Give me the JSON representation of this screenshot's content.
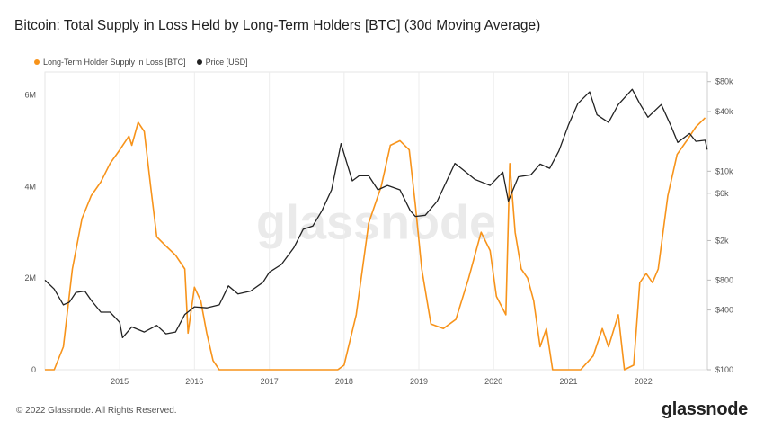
{
  "title": "Bitcoin: Total Supply in Loss Held by Long-Term Holders [BTC] (30d Moving Average)",
  "legend": [
    {
      "label": "Long-Term Holder Supply in Loss [BTC]",
      "color": "#f7931a"
    },
    {
      "label": "Price [USD]",
      "color": "#222222"
    }
  ],
  "watermark": "glassnode",
  "footer": {
    "copyright": "© 2022 Glassnode. All Rights Reserved.",
    "brand": "glassnode"
  },
  "chart_data": {
    "type": "line",
    "x_ticks": [
      "2015",
      "2016",
      "2017",
      "2018",
      "2019",
      "2020",
      "2021",
      "2022"
    ],
    "y_left_ticks": [
      "0",
      "2M",
      "4M",
      "6M"
    ],
    "y_left_range": [
      0,
      6500000
    ],
    "y_right_ticks": [
      "$100",
      "$400",
      "$800",
      "$2k",
      "$6k",
      "$10k",
      "$40k",
      "$80k"
    ],
    "y_right_range": [
      100,
      100000
    ],
    "y_right_scale": "log",
    "grid": "vertical",
    "legend_position": "top-left",
    "series": [
      {
        "name": "Long-Term Holder Supply in Loss [BTC]",
        "color": "#f7931a",
        "axis": "left",
        "points": [
          [
            "2014-01-01",
            0
          ],
          [
            "2014-02-15",
            0
          ],
          [
            "2014-04-01",
            500000
          ],
          [
            "2014-05-15",
            2200000
          ],
          [
            "2014-07-01",
            3300000
          ],
          [
            "2014-08-15",
            3800000
          ],
          [
            "2014-10-01",
            4100000
          ],
          [
            "2014-11-15",
            4500000
          ],
          [
            "2015-01-01",
            4800000
          ],
          [
            "2015-02-15",
            5100000
          ],
          [
            "2015-03-01",
            4900000
          ],
          [
            "2015-04-01",
            5400000
          ],
          [
            "2015-05-01",
            5200000
          ],
          [
            "2015-06-01",
            4000000
          ],
          [
            "2015-07-01",
            2900000
          ],
          [
            "2015-08-15",
            2700000
          ],
          [
            "2015-10-01",
            2500000
          ],
          [
            "2015-11-15",
            2200000
          ],
          [
            "2015-12-01",
            800000
          ],
          [
            "2016-01-01",
            1800000
          ],
          [
            "2016-02-01",
            1500000
          ],
          [
            "2016-03-01",
            800000
          ],
          [
            "2016-04-01",
            200000
          ],
          [
            "2016-05-01",
            0
          ],
          [
            "2017-01-01",
            0
          ],
          [
            "2017-06-01",
            0
          ],
          [
            "2017-12-01",
            0
          ],
          [
            "2018-01-01",
            100000
          ],
          [
            "2018-03-01",
            1200000
          ],
          [
            "2018-05-01",
            3200000
          ],
          [
            "2018-07-01",
            4000000
          ],
          [
            "2018-08-15",
            4900000
          ],
          [
            "2018-10-01",
            5000000
          ],
          [
            "2018-11-15",
            4800000
          ],
          [
            "2018-12-15",
            3600000
          ],
          [
            "2019-01-15",
            2200000
          ],
          [
            "2019-03-01",
            1000000
          ],
          [
            "2019-05-01",
            900000
          ],
          [
            "2019-07-01",
            1100000
          ],
          [
            "2019-09-01",
            2000000
          ],
          [
            "2019-11-01",
            3000000
          ],
          [
            "2019-12-15",
            2600000
          ],
          [
            "2020-01-15",
            1600000
          ],
          [
            "2020-03-01",
            1200000
          ],
          [
            "2020-03-20",
            4500000
          ],
          [
            "2020-04-15",
            3000000
          ],
          [
            "2020-05-15",
            2200000
          ],
          [
            "2020-06-15",
            2000000
          ],
          [
            "2020-07-15",
            1500000
          ],
          [
            "2020-08-15",
            500000
          ],
          [
            "2020-09-15",
            900000
          ],
          [
            "2020-10-15",
            0
          ],
          [
            "2020-12-01",
            0
          ],
          [
            "2021-03-01",
            0
          ],
          [
            "2021-05-01",
            300000
          ],
          [
            "2021-06-15",
            900000
          ],
          [
            "2021-07-15",
            500000
          ],
          [
            "2021-09-01",
            1200000
          ],
          [
            "2021-10-01",
            0
          ],
          [
            "2021-11-15",
            100000
          ],
          [
            "2021-12-15",
            1900000
          ],
          [
            "2022-01-15",
            2100000
          ],
          [
            "2022-02-15",
            1900000
          ],
          [
            "2022-03-15",
            2200000
          ],
          [
            "2022-05-01",
            3800000
          ],
          [
            "2022-06-15",
            4700000
          ],
          [
            "2022-08-01",
            5000000
          ],
          [
            "2022-09-15",
            5300000
          ],
          [
            "2022-10-30",
            5500000
          ]
        ]
      },
      {
        "name": "Price [USD]",
        "color": "#222222",
        "axis": "right",
        "points": [
          [
            "2014-01-01",
            800
          ],
          [
            "2014-02-15",
            650
          ],
          [
            "2014-04-01",
            450
          ],
          [
            "2014-05-01",
            480
          ],
          [
            "2014-06-01",
            600
          ],
          [
            "2014-07-15",
            620
          ],
          [
            "2014-08-15",
            500
          ],
          [
            "2014-10-01",
            380
          ],
          [
            "2014-11-15",
            380
          ],
          [
            "2015-01-01",
            300
          ],
          [
            "2015-01-15",
            210
          ],
          [
            "2015-03-01",
            270
          ],
          [
            "2015-05-01",
            240
          ],
          [
            "2015-07-01",
            280
          ],
          [
            "2015-08-15",
            230
          ],
          [
            "2015-10-01",
            240
          ],
          [
            "2015-11-15",
            360
          ],
          [
            "2016-01-01",
            430
          ],
          [
            "2016-03-01",
            420
          ],
          [
            "2016-05-01",
            450
          ],
          [
            "2016-06-15",
            700
          ],
          [
            "2016-08-01",
            580
          ],
          [
            "2016-10-01",
            620
          ],
          [
            "2016-12-01",
            760
          ],
          [
            "2017-01-01",
            960
          ],
          [
            "2017-03-01",
            1150
          ],
          [
            "2017-05-01",
            1700
          ],
          [
            "2017-06-15",
            2600
          ],
          [
            "2017-08-01",
            2800
          ],
          [
            "2017-09-15",
            4000
          ],
          [
            "2017-11-01",
            6500
          ],
          [
            "2017-12-17",
            19000
          ],
          [
            "2018-01-15",
            12000
          ],
          [
            "2018-02-10",
            8000
          ],
          [
            "2018-03-15",
            9000
          ],
          [
            "2018-05-01",
            9000
          ],
          [
            "2018-06-15",
            6500
          ],
          [
            "2018-08-01",
            7200
          ],
          [
            "2018-10-01",
            6500
          ],
          [
            "2018-11-20",
            4000
          ],
          [
            "2018-12-15",
            3500
          ],
          [
            "2019-02-01",
            3600
          ],
          [
            "2019-04-01",
            5000
          ],
          [
            "2019-06-26",
            12000
          ],
          [
            "2019-08-01",
            10500
          ],
          [
            "2019-10-01",
            8300
          ],
          [
            "2019-12-15",
            7200
          ],
          [
            "2020-02-15",
            9800
          ],
          [
            "2020-03-13",
            5000
          ],
          [
            "2020-05-01",
            8800
          ],
          [
            "2020-07-01",
            9200
          ],
          [
            "2020-08-15",
            11800
          ],
          [
            "2020-10-01",
            10700
          ],
          [
            "2020-11-15",
            16000
          ],
          [
            "2020-12-31",
            29000
          ],
          [
            "2021-02-15",
            48000
          ],
          [
            "2021-04-14",
            63000
          ],
          [
            "2021-05-20",
            37000
          ],
          [
            "2021-07-15",
            31000
          ],
          [
            "2021-09-01",
            47000
          ],
          [
            "2021-11-08",
            67000
          ],
          [
            "2021-12-15",
            48000
          ],
          [
            "2022-01-24",
            35000
          ],
          [
            "2022-03-30",
            47000
          ],
          [
            "2022-05-15",
            29000
          ],
          [
            "2022-06-18",
            19500
          ],
          [
            "2022-08-15",
            24000
          ],
          [
            "2022-09-15",
            20000
          ],
          [
            "2022-10-30",
            20500
          ],
          [
            "2022-11-09",
            16500
          ]
        ]
      }
    ]
  }
}
